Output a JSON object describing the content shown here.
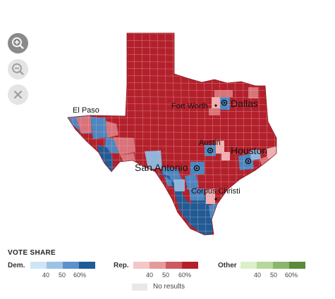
{
  "zoom_controls": [
    {
      "name": "zoom-in",
      "icon": "zoom-in-icon",
      "bg": "#8a8a8a",
      "fg": "#ffffff"
    },
    {
      "name": "zoom-out",
      "icon": "zoom-out-icon",
      "bg": "#e4e4e4",
      "fg": "#9a9a9a"
    },
    {
      "name": "reset",
      "icon": "close-icon",
      "bg": "#e4e4e4",
      "fg": "#9a9a9a"
    }
  ],
  "map": {
    "region": "Texas",
    "colors": {
      "dem_dark": "#1f5c96",
      "dem_mid": "#4a87c2",
      "dem_light": "#8db6dc",
      "rep_dark": "#b3202b",
      "rep_mid": "#d9737a",
      "rep_light": "#efb1b2",
      "county_line": "#e8a7aa"
    },
    "cities": [
      {
        "name": "El Paso",
        "marker": "none",
        "size": "small"
      },
      {
        "name": "Fort Worth",
        "marker": "dot",
        "size": "small"
      },
      {
        "name": "Dallas",
        "marker": "ring",
        "size": "large"
      },
      {
        "name": "Austin",
        "marker": "ring",
        "size": "small"
      },
      {
        "name": "Houston",
        "marker": "ring",
        "size": "large"
      },
      {
        "name": "San Antonio",
        "marker": "ring",
        "size": "large"
      },
      {
        "name": "Corpus Christi",
        "marker": "dot",
        "size": "small"
      }
    ]
  },
  "legend": {
    "title": "VOTE SHARE",
    "groups": [
      {
        "label": "Dem.",
        "colors": [
          "#cfe5f5",
          "#9cc3e5",
          "#5b92c9",
          "#1f5c96"
        ],
        "ticks": [
          "40",
          "50",
          "60%"
        ]
      },
      {
        "label": "Rep.",
        "colors": [
          "#f4c6c6",
          "#e59a9c",
          "#cc5a61",
          "#b3202b"
        ],
        "ticks": [
          "40",
          "50",
          "60%"
        ]
      },
      {
        "label": "Other",
        "colors": [
          "#dcefc9",
          "#b6d79c",
          "#8ab66e",
          "#5a8a3a"
        ],
        "ticks": [
          "40",
          "50",
          "60%"
        ]
      }
    ],
    "no_results": "No results"
  }
}
